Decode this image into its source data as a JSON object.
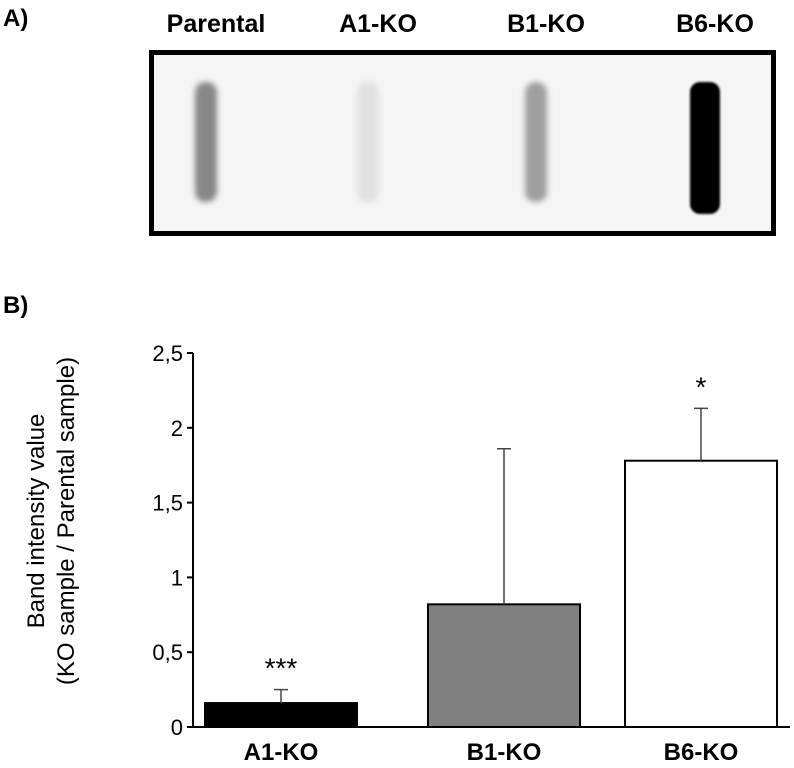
{
  "panel_a": {
    "label": "A)",
    "lanes": [
      {
        "name": "Parental",
        "band_intensity": 0.45
      },
      {
        "name": "A1-KO",
        "band_intensity": 0.08
      },
      {
        "name": "B1-KO",
        "band_intensity": 0.35
      },
      {
        "name": "B6-KO",
        "band_intensity": 1.0
      }
    ]
  },
  "panel_b": {
    "label": "B)"
  },
  "chart_data": {
    "type": "bar",
    "categories": [
      "A1-KO",
      "B1-KO",
      "B6-KO"
    ],
    "values": [
      0.16,
      0.82,
      1.78
    ],
    "error_plus": [
      0.09,
      1.04,
      0.35
    ],
    "significance": [
      "***",
      "",
      "*"
    ],
    "bar_colors": [
      "#000000",
      "#808080",
      "#ffffff"
    ],
    "ylabel_lines": [
      "Band intensity value",
      "(KO sample / Parental sample)"
    ],
    "ylim": [
      0,
      2.5
    ],
    "yticks": [
      0,
      0.5,
      1,
      1.5,
      2,
      2.5
    ],
    "ytick_labels": [
      "0",
      "0,5",
      "1",
      "1,5",
      "2",
      "2,5"
    ],
    "grid": false
  }
}
